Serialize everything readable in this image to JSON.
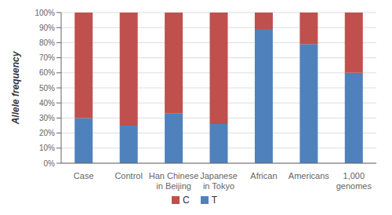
{
  "chart_data": {
    "type": "bar",
    "stacked": true,
    "ylabel": "Allele frequency",
    "categories": [
      "Case",
      "Control",
      "Han Chinese\nin Beijing",
      "Japanese\nin Tokyo",
      "African",
      "Americans",
      "1,000\ngenomes"
    ],
    "series": [
      {
        "name": "T",
        "color": "#4f81bd",
        "values": [
          0.3,
          0.25,
          0.33,
          0.26,
          0.89,
          0.79,
          0.6
        ]
      },
      {
        "name": "C",
        "color": "#c0504d",
        "values": [
          0.7,
          0.75,
          0.67,
          0.74,
          0.11,
          0.21,
          0.4
        ]
      }
    ],
    "ylim": [
      0,
      1.0
    ],
    "yticks": [
      {
        "value": 0.0,
        "label": "0%"
      },
      {
        "value": 0.1,
        "label": "10%"
      },
      {
        "value": 0.2,
        "label": "20%"
      },
      {
        "value": 0.3,
        "label": "30%"
      },
      {
        "value": 0.4,
        "label": "40%"
      },
      {
        "value": 0.5,
        "label": "50%"
      },
      {
        "value": 0.6,
        "label": "60%"
      },
      {
        "value": 0.7,
        "label": "70%"
      },
      {
        "value": 0.8,
        "label": "80%"
      },
      {
        "value": 0.9,
        "label": "90%"
      },
      {
        "value": 1.0,
        "label": "100%"
      }
    ],
    "grid": true,
    "legend": "bottom"
  }
}
